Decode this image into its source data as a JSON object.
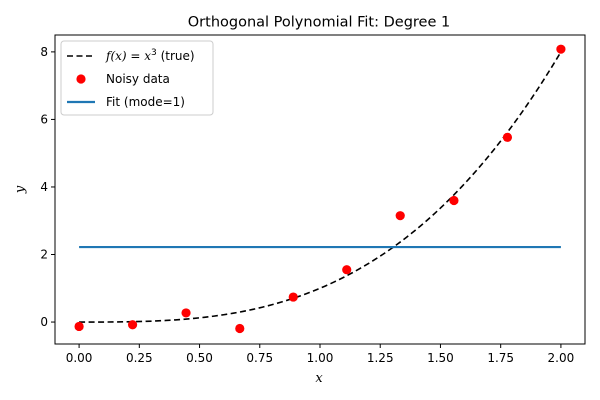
{
  "chart_data": {
    "type": "line",
    "title": "Orthogonal Polynomial Fit: Degree 1",
    "xlabel": "x",
    "ylabel": "y",
    "xlim": [
      -0.1,
      2.1
    ],
    "ylim": [
      -0.65,
      8.5
    ],
    "xticks": [
      "0.00",
      "0.25",
      "0.50",
      "0.75",
      "1.00",
      "1.25",
      "1.50",
      "1.75",
      "2.00"
    ],
    "xtick_values": [
      0,
      0.25,
      0.5,
      0.75,
      1.0,
      1.25,
      1.5,
      1.75,
      2.0
    ],
    "yticks": [
      "0",
      "2",
      "4",
      "6",
      "8"
    ],
    "ytick_values": [
      0,
      2,
      4,
      6,
      8
    ],
    "grid": false,
    "legend_position": "top-left",
    "series": [
      {
        "name": "f(x) = x³ (true)",
        "legend_parts": [
          "f(x)",
          " = ",
          "x",
          "3",
          " (true)"
        ],
        "kind": "line",
        "style": "dashed",
        "color": "#000000",
        "function": "x^3",
        "domain": [
          0,
          2
        ]
      },
      {
        "name": "Noisy data",
        "legend_parts": [
          "Noisy data"
        ],
        "kind": "scatter",
        "color": "#ff0000",
        "x": [
          0.0,
          0.222,
          0.444,
          0.667,
          0.889,
          1.111,
          1.333,
          1.556,
          1.778,
          2.0
        ],
        "y": [
          -0.13,
          -0.08,
          0.27,
          -0.19,
          0.74,
          1.55,
          3.15,
          3.6,
          5.47,
          8.08
        ]
      },
      {
        "name": "Fit (mode=1)",
        "legend_parts": [
          "Fit (mode=1)"
        ],
        "kind": "line",
        "style": "solid",
        "color": "#1f77b4",
        "x": [
          0,
          2
        ],
        "y": [
          2.22,
          2.22
        ]
      }
    ]
  }
}
